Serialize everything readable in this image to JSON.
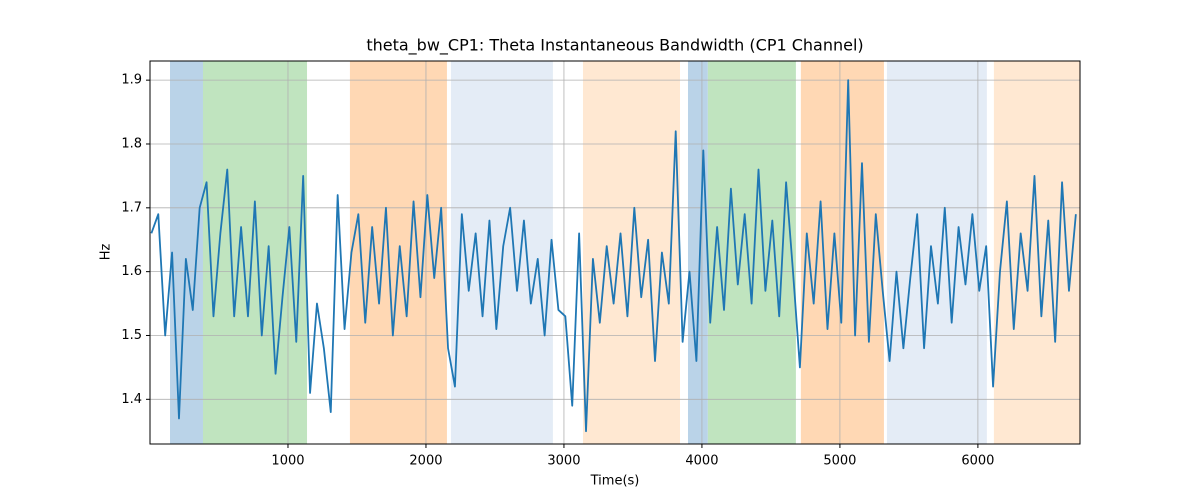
{
  "chart_data": {
    "type": "line",
    "title": "theta_bw_CP1: Theta Instantaneous Bandwidth (CP1 Channel)",
    "x_label": "Time(s)",
    "y_label": "Hz",
    "xlim": [
      0,
      6740
    ],
    "ylim": [
      1.33,
      1.93
    ],
    "xticks": [
      1000,
      2000,
      3000,
      4000,
      5000,
      6000
    ],
    "yticks": [
      1.4,
      1.5,
      1.6,
      1.7,
      1.8,
      1.9
    ],
    "grid": true,
    "spans": [
      {
        "start": 145,
        "end": 384,
        "color": "#bad3e8"
      },
      {
        "start": 384,
        "end": 1138,
        "color": "#c0e4bf"
      },
      {
        "start": 1449,
        "end": 2152,
        "color": "#ffd8b4"
      },
      {
        "start": 2181,
        "end": 2920,
        "color": "#e4ecf6"
      },
      {
        "start": 3138,
        "end": 3841,
        "color": "#ffe8d2"
      },
      {
        "start": 3899,
        "end": 4043,
        "color": "#bad3e8"
      },
      {
        "start": 4043,
        "end": 4681,
        "color": "#c0e4bf"
      },
      {
        "start": 4717,
        "end": 5319,
        "color": "#ffd8b4"
      },
      {
        "start": 5341,
        "end": 6065,
        "color": "#e4ecf6"
      },
      {
        "start": 6116,
        "end": 6740,
        "color": "#ffe8d2"
      }
    ],
    "x": [
      10,
      60,
      110,
      160,
      210,
      260,
      310,
      360,
      410,
      460,
      510,
      560,
      610,
      660,
      710,
      760,
      810,
      860,
      910,
      960,
      1010,
      1060,
      1110,
      1160,
      1210,
      1260,
      1310,
      1360,
      1410,
      1460,
      1510,
      1560,
      1610,
      1660,
      1710,
      1760,
      1810,
      1860,
      1910,
      1960,
      2010,
      2060,
      2110,
      2160,
      2210,
      2260,
      2310,
      2360,
      2410,
      2460,
      2510,
      2560,
      2610,
      2660,
      2710,
      2760,
      2810,
      2860,
      2910,
      2960,
      3010,
      3060,
      3110,
      3160,
      3210,
      3260,
      3310,
      3360,
      3410,
      3460,
      3510,
      3560,
      3610,
      3660,
      3710,
      3760,
      3810,
      3860,
      3910,
      3960,
      4010,
      4060,
      4110,
      4160,
      4210,
      4260,
      4310,
      4360,
      4410,
      4460,
      4510,
      4560,
      4610,
      4660,
      4710,
      4760,
      4810,
      4860,
      4910,
      4960,
      5010,
      5060,
      5110,
      5160,
      5210,
      5260,
      5310,
      5360,
      5410,
      5460,
      5510,
      5560,
      5610,
      5660,
      5710,
      5760,
      5810,
      5860,
      5910,
      5960,
      6010,
      6060,
      6110,
      6160,
      6210,
      6260,
      6310,
      6360,
      6410,
      6460,
      6510,
      6560,
      6610,
      6660,
      6710
    ],
    "series": [
      {
        "color": "#1f77b4",
        "values": [
          1.66,
          1.69,
          1.5,
          1.63,
          1.37,
          1.62,
          1.54,
          1.7,
          1.74,
          1.53,
          1.66,
          1.76,
          1.53,
          1.67,
          1.53,
          1.71,
          1.5,
          1.64,
          1.44,
          1.56,
          1.67,
          1.49,
          1.75,
          1.41,
          1.55,
          1.48,
          1.38,
          1.72,
          1.51,
          1.63,
          1.69,
          1.52,
          1.67,
          1.55,
          1.7,
          1.5,
          1.64,
          1.53,
          1.71,
          1.56,
          1.72,
          1.59,
          1.7,
          1.48,
          1.42,
          1.69,
          1.57,
          1.66,
          1.53,
          1.68,
          1.51,
          1.64,
          1.7,
          1.57,
          1.68,
          1.55,
          1.62,
          1.5,
          1.65,
          1.54,
          1.53,
          1.39,
          1.66,
          1.35,
          1.62,
          1.52,
          1.64,
          1.55,
          1.66,
          1.53,
          1.7,
          1.56,
          1.65,
          1.46,
          1.63,
          1.55,
          1.82,
          1.49,
          1.6,
          1.46,
          1.79,
          1.52,
          1.67,
          1.54,
          1.73,
          1.58,
          1.69,
          1.55,
          1.76,
          1.57,
          1.68,
          1.53,
          1.74,
          1.6,
          1.45,
          1.66,
          1.55,
          1.71,
          1.51,
          1.66,
          1.52,
          1.9,
          1.5,
          1.77,
          1.49,
          1.69,
          1.57,
          1.46,
          1.6,
          1.48,
          1.59,
          1.69,
          1.48,
          1.64,
          1.55,
          1.7,
          1.52,
          1.67,
          1.58,
          1.69,
          1.57,
          1.64,
          1.42,
          1.6,
          1.71,
          1.51,
          1.66,
          1.57,
          1.75,
          1.53,
          1.68,
          1.49,
          1.74,
          1.57,
          1.69
        ]
      }
    ]
  }
}
